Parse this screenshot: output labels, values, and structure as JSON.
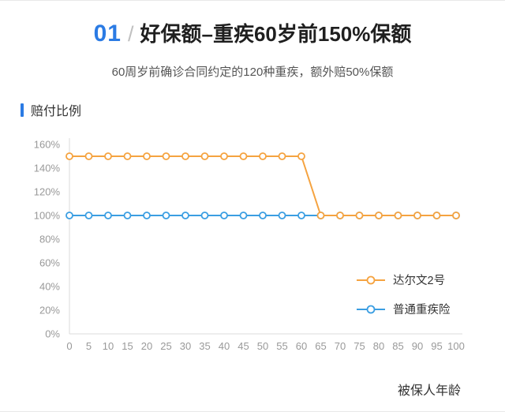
{
  "header": {
    "number": "01",
    "divider": "/",
    "title": "好保额–重疾60岁前150%保额"
  },
  "subtitle": "60周岁前确诊合同约定的120种重疾，额外赔50%保额",
  "chart": {
    "y_axis_title": "赔付比例",
    "x_axis_label": "被保人年龄"
  },
  "colors": {
    "accent_blue": "#2B7BE4",
    "series_orange": "#F5A340",
    "series_blue": "#3B9EE2",
    "axis_text": "#999999",
    "axis_line": "#DBDBDB",
    "legend_text": "#333333"
  },
  "chart_data": {
    "type": "line",
    "title": "",
    "xlabel": "被保人年龄",
    "ylabel": "赔付比例",
    "xlim": [
      0,
      100
    ],
    "ylim": [
      0,
      160
    ],
    "x_ticks": [
      0,
      5,
      10,
      15,
      20,
      25,
      30,
      35,
      40,
      45,
      50,
      55,
      60,
      65,
      70,
      75,
      80,
      85,
      90,
      95,
      100
    ],
    "y_ticks": [
      0,
      20,
      40,
      60,
      80,
      100,
      120,
      140,
      160
    ],
    "y_tick_suffix": "%",
    "grid": false,
    "legend_position": "inside-right",
    "series": [
      {
        "name": "达尔文2号",
        "color": "#F5A340",
        "points": [
          [
            0,
            150
          ],
          [
            5,
            150
          ],
          [
            10,
            150
          ],
          [
            15,
            150
          ],
          [
            20,
            150
          ],
          [
            25,
            150
          ],
          [
            30,
            150
          ],
          [
            35,
            150
          ],
          [
            40,
            150
          ],
          [
            45,
            150
          ],
          [
            50,
            150
          ],
          [
            55,
            150
          ],
          [
            60,
            150
          ],
          [
            65,
            100
          ],
          [
            70,
            100
          ],
          [
            75,
            100
          ],
          [
            80,
            100
          ],
          [
            85,
            100
          ],
          [
            90,
            100
          ],
          [
            95,
            100
          ],
          [
            100,
            100
          ]
        ]
      },
      {
        "name": "普通重疾险",
        "color": "#3B9EE2",
        "points": [
          [
            0,
            100
          ],
          [
            5,
            100
          ],
          [
            10,
            100
          ],
          [
            15,
            100
          ],
          [
            20,
            100
          ],
          [
            25,
            100
          ],
          [
            30,
            100
          ],
          [
            35,
            100
          ],
          [
            40,
            100
          ],
          [
            45,
            100
          ],
          [
            50,
            100
          ],
          [
            55,
            100
          ],
          [
            60,
            100
          ],
          [
            65,
            100
          ],
          [
            70,
            100
          ],
          [
            75,
            100
          ],
          [
            80,
            100
          ],
          [
            85,
            100
          ],
          [
            90,
            100
          ],
          [
            95,
            100
          ],
          [
            100,
            100
          ]
        ]
      }
    ]
  }
}
